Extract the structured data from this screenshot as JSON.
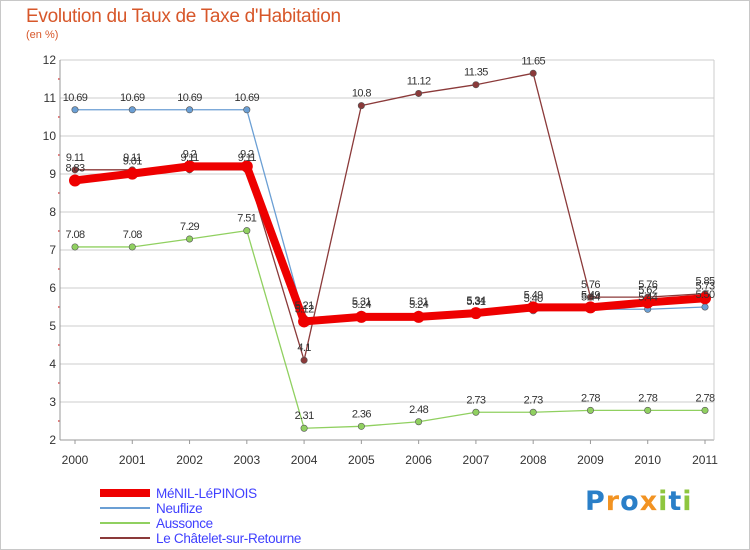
{
  "header": {
    "title": "Evolution du Taux de Taxe d'Habitation",
    "subtitle": "(en %)"
  },
  "brand": {
    "letters": [
      "P",
      "r",
      "o",
      "x",
      "i",
      "t",
      "i"
    ],
    "colors": [
      "#2a7fc8",
      "#f29322",
      "#2a7fc8",
      "#f29322",
      "#8ec63f",
      "#2a7fc8",
      "#8ec63f"
    ]
  },
  "colors": {
    "axis": "#999999",
    "grid": "#cccccc",
    "tick_label": "#333333",
    "value_label": "#333333",
    "minor_tick": "#cc0000"
  },
  "chart_data": {
    "type": "line",
    "title": "Evolution du Taux de Taxe d'Habitation",
    "subtitle": "(en %)",
    "x": [
      "2000",
      "2001",
      "2002",
      "2003",
      "2004",
      "2005",
      "2006",
      "2007",
      "2008",
      "2009",
      "2010",
      "2011"
    ],
    "ylim": [
      2,
      12
    ],
    "yticks": [
      "2",
      "3",
      "4",
      "5",
      "6",
      "7",
      "8",
      "9",
      "10",
      "11",
      "12"
    ],
    "grid": "horizontal",
    "legend_position": "bottom-left",
    "series": [
      {
        "name": "MéNIL-LéPINOIS",
        "color": "#ee0000",
        "width": 8,
        "values": [
          8.83,
          9.01,
          9.2,
          9.2,
          5.12,
          5.24,
          5.24,
          5.34,
          5.49,
          5.49,
          5.62,
          5.73
        ],
        "labels": [
          "8.83",
          "9.01",
          "9.2",
          "9.2",
          "5.12",
          "5.24",
          "5.24",
          "5.34",
          "5.49",
          "5.49",
          "5.62",
          "5.73"
        ]
      },
      {
        "name": "Neuflize",
        "color": "#6b9fd4",
        "width": 1.3,
        "values": [
          10.69,
          10.69,
          10.69,
          10.69,
          5.21,
          5.31,
          5.31,
          5.31,
          5.4,
          5.44,
          5.44,
          5.5
        ],
        "labels": [
          "10.69",
          "10.69",
          "10.69",
          "10.69",
          "5.21",
          "5.31",
          "5.31",
          "5.31",
          "5.40",
          "5.44",
          "5.44",
          "5.50"
        ]
      },
      {
        "name": "Aussonce",
        "color": "#90d060",
        "width": 1.3,
        "values": [
          7.08,
          7.08,
          7.29,
          7.51,
          2.31,
          2.36,
          2.48,
          2.73,
          2.73,
          2.78,
          2.78,
          2.78
        ],
        "labels": [
          "7.08",
          "7.08",
          "7.29",
          "7.51",
          "2.31",
          "2.36",
          "2.48",
          "2.73",
          "2.73",
          "2.78",
          "2.78",
          "2.78"
        ]
      },
      {
        "name": "Le Châtelet-sur-Retourne",
        "color": "#8b3a3a",
        "width": 1.3,
        "values": [
          9.11,
          9.11,
          9.11,
          9.11,
          4.1,
          10.8,
          11.12,
          11.35,
          11.65,
          5.76,
          5.76,
          5.85
        ],
        "labels": [
          "9.11",
          "9.11",
          "9.11",
          "9.11",
          "4.1",
          "10.8",
          "11.12",
          "11.35",
          "11.65",
          "5.76",
          "5.76",
          "5.85"
        ]
      }
    ]
  }
}
